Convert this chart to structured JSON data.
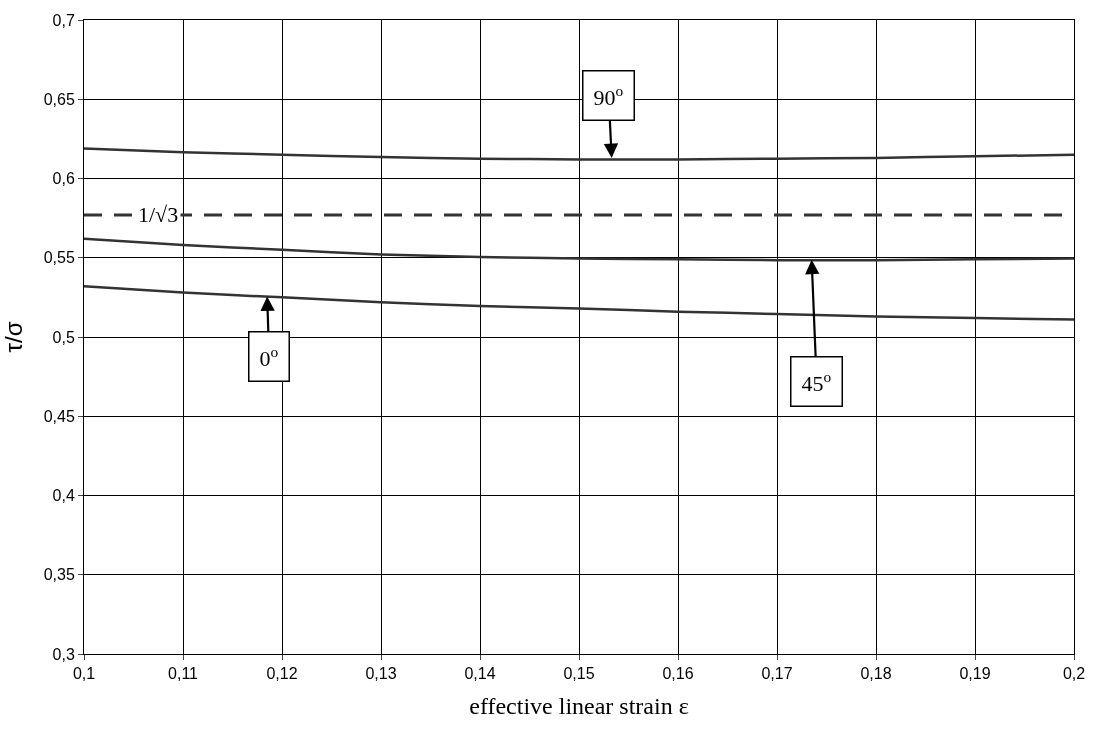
{
  "chart_data": {
    "type": "line",
    "xlabel": "effective linear strain ε",
    "ylabel": "τ/σ",
    "x": [
      0.1,
      0.11,
      0.12,
      0.13,
      0.14,
      0.15,
      0.16,
      0.17,
      0.18,
      0.19,
      0.2
    ],
    "series": [
      {
        "color": "#333333",
        "values": [
          0.619,
          0.6165,
          0.615,
          0.6135,
          0.6125,
          0.612,
          0.612,
          0.6125,
          0.613,
          0.614,
          0.615
        ]
      },
      {
        "color": "#333333",
        "values": [
          0.562,
          0.558,
          0.555,
          0.552,
          0.5505,
          0.5495,
          0.549,
          0.5485,
          0.5485,
          0.549,
          0.5495
        ]
      },
      {
        "color": "#333333",
        "values": [
          0.532,
          0.528,
          0.525,
          0.522,
          0.5195,
          0.518,
          0.516,
          0.5145,
          0.513,
          0.512,
          0.511
        ]
      }
    ],
    "ref_lines": [
      {
        "axis": "y",
        "value": 0.577,
        "label": "1/√3",
        "color": "#333333",
        "line_style": "dashed"
      }
    ],
    "annotations": [
      {
        "text": "90$^{o}$",
        "x": 0.1533,
        "y": 0.613
      },
      {
        "text": "45$^{o}$",
        "x": 0.1735,
        "y": 0.5487
      },
      {
        "text": "0$^{o}$",
        "x": 0.1185,
        "y": 0.5255
      }
    ],
    "xlim": [
      0.1,
      0.2
    ],
    "xticks": [
      {
        "value": 0.1,
        "label": "0,1"
      },
      {
        "value": 0.11,
        "label": "0,11"
      },
      {
        "value": 0.12,
        "label": "0,12"
      },
      {
        "value": 0.13,
        "label": "0,13"
      },
      {
        "value": 0.14,
        "label": "0,14"
      },
      {
        "value": 0.15,
        "label": "0,15"
      },
      {
        "value": 0.16,
        "label": "0,16"
      },
      {
        "value": 0.17,
        "label": "0,17"
      },
      {
        "value": 0.18,
        "label": "0,18"
      },
      {
        "value": 0.19,
        "label": "0,19"
      },
      {
        "value": 0.2,
        "label": "0,2"
      }
    ],
    "ylim": [
      0.3,
      0.7
    ],
    "yticks": [
      {
        "value": 0.3,
        "label": "0,3"
      },
      {
        "value": 0.35,
        "label": "0,35"
      },
      {
        "value": 0.4,
        "label": "0,4"
      },
      {
        "value": 0.45,
        "label": "0,45"
      },
      {
        "value": 0.5,
        "label": "0,5"
      },
      {
        "value": 0.55,
        "label": "0,55"
      },
      {
        "value": 0.6,
        "label": "0,6"
      },
      {
        "value": 0.65,
        "label": "0,65"
      },
      {
        "value": 0.7,
        "label": "0,7"
      }
    ],
    "grid": true,
    "marker": "none",
    "line_style": "solid"
  }
}
